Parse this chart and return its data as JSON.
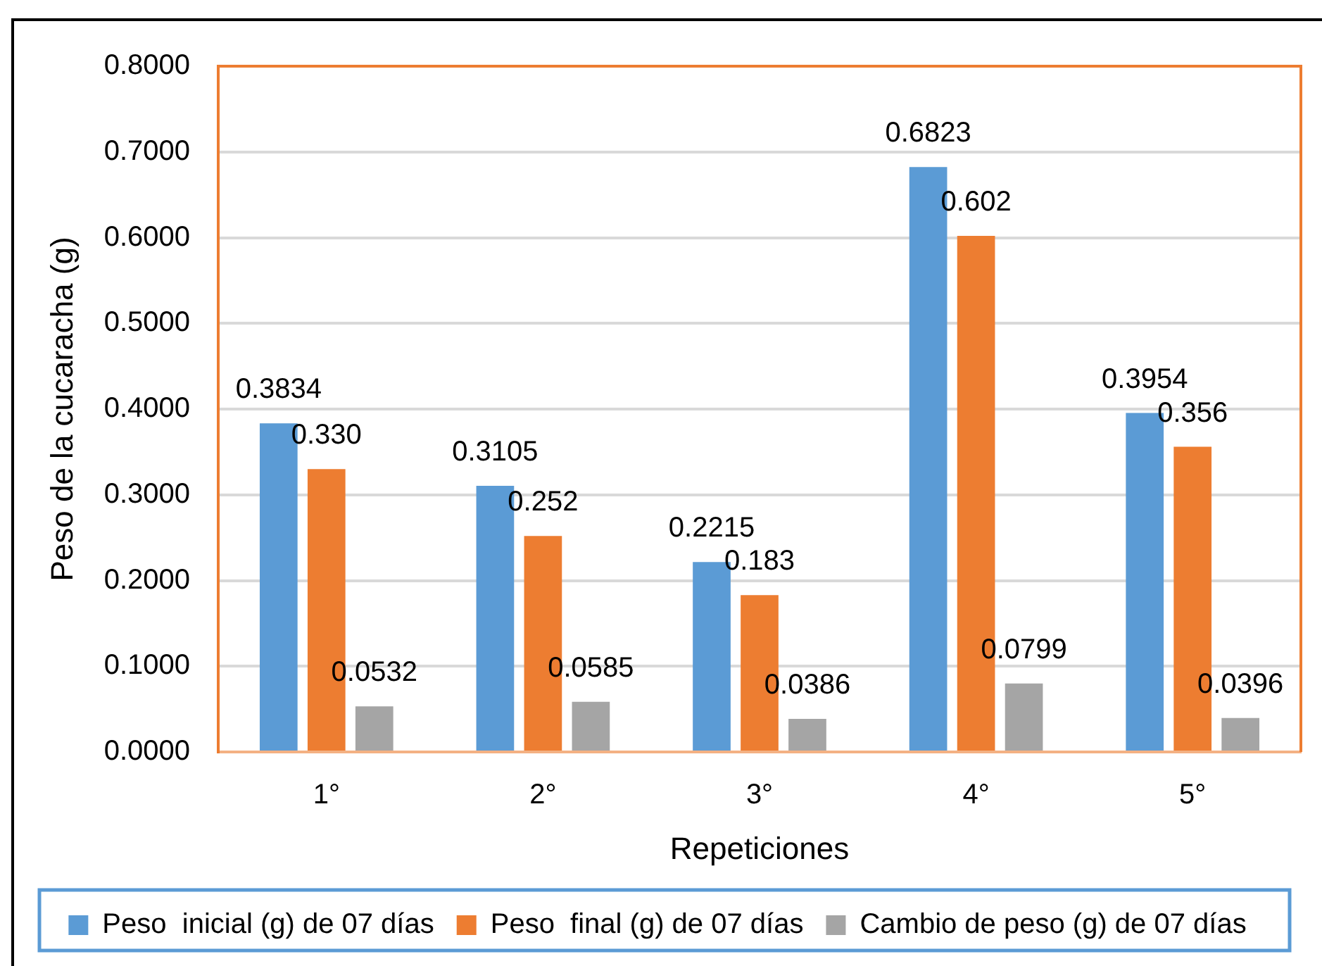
{
  "chart_data": {
    "type": "bar",
    "xlabel": "Repeticiones",
    "ylabel": "Peso de la cucaracha (g)",
    "categories": [
      "1°",
      "2°",
      "3°",
      "4°",
      "5°"
    ],
    "series": [
      {
        "name": "Peso  inicial (g) de 07 días",
        "color": "#5b9bd5",
        "values": [
          0.3834,
          0.3105,
          0.2215,
          0.6823,
          0.3954
        ],
        "value_labels": [
          "0.3834",
          "0.3105",
          "0.2215",
          "0.6823",
          "0.3954"
        ]
      },
      {
        "name": "Peso  final (g) de 07 días",
        "color": "#ed7d31",
        "values": [
          0.33,
          0.252,
          0.183,
          0.602,
          0.356
        ],
        "value_labels": [
          "0.330",
          "0.252",
          "0.183",
          "0.602",
          "0.356"
        ]
      },
      {
        "name": "Cambio de peso (g) de 07 días",
        "color": "#a5a5a5",
        "values": [
          0.0532,
          0.0585,
          0.0386,
          0.0799,
          0.0396
        ],
        "value_labels": [
          "0.0532",
          "0.0585",
          "0.0386",
          "0.0799",
          "0.0396"
        ]
      }
    ],
    "ylim": [
      0,
      0.8
    ],
    "yticks": [
      {
        "value": 0,
        "label": "0.0000"
      },
      {
        "value": 0.1,
        "label": "0.1000"
      },
      {
        "value": 0.2,
        "label": "0.2000"
      },
      {
        "value": 0.3,
        "label": "0.3000"
      },
      {
        "value": 0.4,
        "label": "0.4000"
      },
      {
        "value": 0.5,
        "label": "0.5000"
      },
      {
        "value": 0.6,
        "label": "0.6000"
      },
      {
        "value": 0.7,
        "label": "0.7000"
      },
      {
        "value": 0.8,
        "label": "0.8000"
      }
    ],
    "grid": "y",
    "legend": "bottom"
  }
}
